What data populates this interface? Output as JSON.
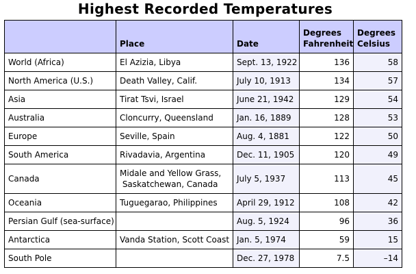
{
  "title": "Highest Recorded Temperatures",
  "headers": {
    "region": "",
    "place": "Place",
    "date": "Date",
    "fahrenheit": "Degrees Fahrenheit",
    "celsius": "Degrees Celsius"
  },
  "rows": [
    {
      "region": "World (Africa)",
      "place": "El Azizia, Libya",
      "date": "Sept. 13, 1922",
      "f": "136",
      "c": "58"
    },
    {
      "region": "North America (U.S.)",
      "place": "Death Valley, Calif.",
      "date": "July 10, 1913",
      "f": "134",
      "c": "57"
    },
    {
      "region": "Asia",
      "place": "Tirat Tsvi, Israel",
      "date": "June 21, 1942",
      "f": "129",
      "c": "54"
    },
    {
      "region": "Australia",
      "place": "Cloncurry, Queensland",
      "date": "Jan. 16, 1889",
      "f": "128",
      "c": "53"
    },
    {
      "region": "Europe",
      "place": "Seville, Spain",
      "date": "Aug. 4, 1881",
      "f": "122",
      "c": "50"
    },
    {
      "region": "South America",
      "place": "Rivadavia, Argentina",
      "date": "Dec. 11, 1905",
      "f": "120",
      "c": "49"
    },
    {
      "region": "Canada",
      "place": "Midale and Yellow Grass,\n Saskatchewan, Canada",
      "date": "July 5, 1937",
      "f": "113",
      "c": "45"
    },
    {
      "region": "Oceania",
      "place": "Tuguegarao, Philippines",
      "date": "April 29, 1912",
      "f": "108",
      "c": "42"
    },
    {
      "region": "Persian Gulf (sea-surface)",
      "place": "",
      "date": "Aug. 5, 1924",
      "f": "96",
      "c": "36"
    },
    {
      "region": "Antarctica",
      "place": "Vanda Station, Scott Coast",
      "date": "Jan. 5, 1974",
      "f": "59",
      "c": "15"
    },
    {
      "region": "South Pole",
      "place": "",
      "date": "Dec. 27, 1978",
      "f": "7.5",
      "c": "–14"
    }
  ],
  "colors": {
    "header_bg": "#cccdff",
    "alt_column_bg": "#f1f1fc",
    "border": "#000000"
  }
}
